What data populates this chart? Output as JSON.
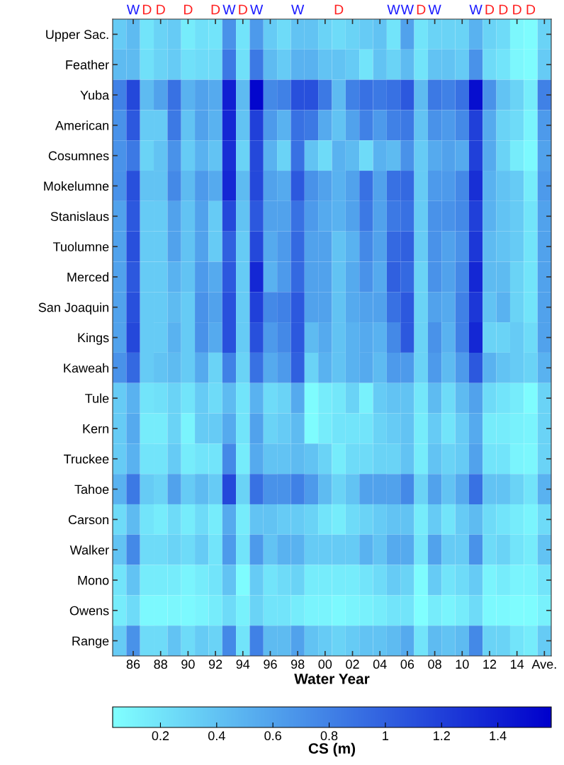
{
  "chart_data": {
    "type": "heatmap",
    "xlabel": "Water Year",
    "clabel": "CS (m)",
    "categories": [
      null,
      "86",
      null,
      "88",
      null,
      "90",
      null,
      "92",
      null,
      "94",
      null,
      "96",
      null,
      "98",
      null,
      "00",
      null,
      "02",
      null,
      "04",
      null,
      "06",
      null,
      "08",
      null,
      "10",
      null,
      "12",
      null,
      "14",
      null,
      "Ave."
    ],
    "annotations": [
      " W      W W  W      WW W  W     ",
      "  DD D D D      D     D    DDDD "
    ],
    "y_categories": [
      "Upper Sac.",
      "Feather",
      "Yuba",
      "American",
      "Cosumnes",
      "Mokelumne",
      "Stanislaus",
      "Tuolumne",
      "Merced",
      "San Joaquin",
      "Kings",
      "Kaweah",
      "Tule",
      "Kern",
      "Truckee",
      "Tahoe",
      "Carson",
      "Walker",
      "Mono",
      "Owens",
      "Range"
    ],
    "cells": [
      [
        0.35,
        0.45,
        0.2,
        0.3,
        0.35,
        0.15,
        0.22,
        0.2,
        0.7,
        0.2,
        0.65,
        0.35,
        0.25,
        0.4,
        0.4,
        0.3,
        0.25,
        0.3,
        0.35,
        0.4,
        0.2,
        0.6,
        0.2,
        0.3,
        0.3,
        0.3,
        0.5,
        0.3,
        0.25,
        0.08,
        0.05,
        0.3
      ],
      [
        0.45,
        0.45,
        0.22,
        0.3,
        0.35,
        0.22,
        0.25,
        0.25,
        0.85,
        0.22,
        0.85,
        0.45,
        0.35,
        0.5,
        0.5,
        0.4,
        0.4,
        0.35,
        0.2,
        0.4,
        0.3,
        0.45,
        0.2,
        0.4,
        0.4,
        0.35,
        0.7,
        0.25,
        0.2,
        0.08,
        0.05,
        0.35
      ],
      [
        0.8,
        1.15,
        0.45,
        0.6,
        0.9,
        0.5,
        0.6,
        0.55,
        1.4,
        0.45,
        1.55,
        0.75,
        0.8,
        1.1,
        1.1,
        0.85,
        0.45,
        0.8,
        0.9,
        0.85,
        0.9,
        1.05,
        0.45,
        0.85,
        0.8,
        0.9,
        1.5,
        0.7,
        0.4,
        0.3,
        0.15,
        0.8
      ],
      [
        0.7,
        1.05,
        0.35,
        0.35,
        0.85,
        0.4,
        0.6,
        0.5,
        1.35,
        0.4,
        1.2,
        0.65,
        0.5,
        0.9,
        0.85,
        0.55,
        0.4,
        0.6,
        0.8,
        0.65,
        0.8,
        0.85,
        0.4,
        0.7,
        0.65,
        0.75,
        1.2,
        0.55,
        0.3,
        0.25,
        0.1,
        0.65
      ],
      [
        0.7,
        0.85,
        0.3,
        0.4,
        0.7,
        0.35,
        0.5,
        0.4,
        1.3,
        0.3,
        1.15,
        0.5,
        0.3,
        0.9,
        0.4,
        0.25,
        0.5,
        0.45,
        0.25,
        0.5,
        0.45,
        0.7,
        0.35,
        0.55,
        0.6,
        0.55,
        1.2,
        0.55,
        0.3,
        0.15,
        0.07,
        0.6
      ],
      [
        0.7,
        1.1,
        0.4,
        0.4,
        0.75,
        0.45,
        0.65,
        0.55,
        1.35,
        0.45,
        1.15,
        0.6,
        0.55,
        1.05,
        0.7,
        0.6,
        0.5,
        0.6,
        0.9,
        0.6,
        0.9,
        0.95,
        0.35,
        0.65,
        0.65,
        0.75,
        1.3,
        0.5,
        0.4,
        0.35,
        0.15,
        0.65
      ],
      [
        0.6,
        1.05,
        0.35,
        0.35,
        0.6,
        0.4,
        0.6,
        0.35,
        1.15,
        0.4,
        1.05,
        0.6,
        0.6,
        0.9,
        0.65,
        0.55,
        0.5,
        0.6,
        0.85,
        0.6,
        0.85,
        0.9,
        0.35,
        0.7,
        0.7,
        0.75,
        1.2,
        0.5,
        0.4,
        0.35,
        0.2,
        0.6
      ],
      [
        0.6,
        1.1,
        0.35,
        0.35,
        0.6,
        0.4,
        0.6,
        0.35,
        1.0,
        0.35,
        1.15,
        0.55,
        0.65,
        0.95,
        0.6,
        0.6,
        0.4,
        0.5,
        0.75,
        0.6,
        0.95,
        1.0,
        0.35,
        0.7,
        0.6,
        0.7,
        1.25,
        0.45,
        0.4,
        0.35,
        0.2,
        0.6
      ],
      [
        0.6,
        1.05,
        0.35,
        0.35,
        0.5,
        0.4,
        0.65,
        0.55,
        1.05,
        0.35,
        1.35,
        0.5,
        0.65,
        0.95,
        0.6,
        0.6,
        0.4,
        0.55,
        0.7,
        0.55,
        1.0,
        0.95,
        0.3,
        0.7,
        0.6,
        0.75,
        1.35,
        0.45,
        0.45,
        0.3,
        0.2,
        0.6
      ],
      [
        0.6,
        1.1,
        0.35,
        0.35,
        0.45,
        0.35,
        0.7,
        0.6,
        1.1,
        0.35,
        1.2,
        0.75,
        0.8,
        1.05,
        0.6,
        0.6,
        0.4,
        0.55,
        0.6,
        0.6,
        0.9,
        1.05,
        0.3,
        0.6,
        0.55,
        0.8,
        1.25,
        0.4,
        0.5,
        0.3,
        0.2,
        0.6
      ],
      [
        0.6,
        1.15,
        0.35,
        0.35,
        0.5,
        0.35,
        0.7,
        0.55,
        1.1,
        0.35,
        1.1,
        0.65,
        0.75,
        1.05,
        0.45,
        0.55,
        0.4,
        0.5,
        0.55,
        0.5,
        0.75,
        1.05,
        0.3,
        0.7,
        0.5,
        0.8,
        1.35,
        0.3,
        0.3,
        0.35,
        0.25,
        0.6
      ],
      [
        0.7,
        0.95,
        0.35,
        0.4,
        0.45,
        0.35,
        0.55,
        0.3,
        0.8,
        0.3,
        0.9,
        0.55,
        0.65,
        1.0,
        0.3,
        0.5,
        0.4,
        0.5,
        0.55,
        0.45,
        0.65,
        0.65,
        0.3,
        0.65,
        0.45,
        0.65,
        1.05,
        0.5,
        0.4,
        0.35,
        0.3,
        0.5
      ],
      [
        0.35,
        0.5,
        0.2,
        0.22,
        0.3,
        0.2,
        0.35,
        0.25,
        0.45,
        0.2,
        0.5,
        0.25,
        0.3,
        0.55,
        0.05,
        0.15,
        0.18,
        0.3,
        0.12,
        0.35,
        0.4,
        0.4,
        0.18,
        0.45,
        0.25,
        0.45,
        0.6,
        0.25,
        0.2,
        0.15,
        0.05,
        0.3
      ],
      [
        0.35,
        0.55,
        0.15,
        0.15,
        0.3,
        0.1,
        0.35,
        0.35,
        0.55,
        0.2,
        0.6,
        0.3,
        0.35,
        0.45,
        0.05,
        0.15,
        0.2,
        0.2,
        0.2,
        0.3,
        0.35,
        0.4,
        0.15,
        0.35,
        0.2,
        0.35,
        0.55,
        0.15,
        0.15,
        0.12,
        0.1,
        0.3
      ],
      [
        0.35,
        0.5,
        0.2,
        0.2,
        0.35,
        0.15,
        0.2,
        0.2,
        0.75,
        0.15,
        0.55,
        0.4,
        0.4,
        0.45,
        0.4,
        0.3,
        0.15,
        0.25,
        0.25,
        0.3,
        0.3,
        0.4,
        0.15,
        0.4,
        0.3,
        0.35,
        0.6,
        0.2,
        0.2,
        0.1,
        0.08,
        0.3
      ],
      [
        0.5,
        0.85,
        0.35,
        0.3,
        0.6,
        0.35,
        0.45,
        0.35,
        1.15,
        0.3,
        0.9,
        0.7,
        0.7,
        0.8,
        0.65,
        0.45,
        0.3,
        0.4,
        0.6,
        0.6,
        0.6,
        0.75,
        0.3,
        0.6,
        0.4,
        0.55,
        0.9,
        0.4,
        0.4,
        0.3,
        0.2,
        0.5
      ],
      [
        0.25,
        0.45,
        0.2,
        0.15,
        0.25,
        0.15,
        0.25,
        0.15,
        0.55,
        0.15,
        0.4,
        0.4,
        0.35,
        0.35,
        0.3,
        0.2,
        0.15,
        0.25,
        0.3,
        0.35,
        0.4,
        0.4,
        0.15,
        0.35,
        0.2,
        0.35,
        0.45,
        0.25,
        0.2,
        0.15,
        0.1,
        0.25
      ],
      [
        0.4,
        0.75,
        0.25,
        0.25,
        0.3,
        0.25,
        0.35,
        0.2,
        0.65,
        0.2,
        0.65,
        0.4,
        0.5,
        0.5,
        0.35,
        0.35,
        0.35,
        0.35,
        0.5,
        0.4,
        0.55,
        0.55,
        0.2,
        0.6,
        0.35,
        0.35,
        0.7,
        0.25,
        0.3,
        0.2,
        0.15,
        0.4
      ],
      [
        0.2,
        0.4,
        0.15,
        0.15,
        0.15,
        0.1,
        0.15,
        0.2,
        0.4,
        0.05,
        0.35,
        0.2,
        0.25,
        0.3,
        0.15,
        0.15,
        0.15,
        0.15,
        0.2,
        0.25,
        0.35,
        0.3,
        0.05,
        0.35,
        0.2,
        0.25,
        0.35,
        0.1,
        0.15,
        0.1,
        0.1,
        0.2
      ],
      [
        0.15,
        0.25,
        0.07,
        0.07,
        0.08,
        0.07,
        0.1,
        0.15,
        0.25,
        0.12,
        0.3,
        0.2,
        0.2,
        0.15,
        0.1,
        0.1,
        0.07,
        0.1,
        0.12,
        0.15,
        0.2,
        0.2,
        0.03,
        0.15,
        0.1,
        0.15,
        0.25,
        0.07,
        0.07,
        0.05,
        0.05,
        0.12
      ],
      [
        0.35,
        0.7,
        0.25,
        0.25,
        0.4,
        0.25,
        0.35,
        0.3,
        0.75,
        0.2,
        0.8,
        0.45,
        0.45,
        0.6,
        0.4,
        0.35,
        0.3,
        0.35,
        0.4,
        0.4,
        0.45,
        0.55,
        0.2,
        0.45,
        0.4,
        0.45,
        0.75,
        0.3,
        0.3,
        0.2,
        0.15,
        0.35
      ]
    ],
    "clim": [
      0.03,
      1.59
    ],
    "cticks": [
      0.2,
      0.4,
      0.6,
      0.8,
      1,
      1.2,
      1.4
    ]
  }
}
